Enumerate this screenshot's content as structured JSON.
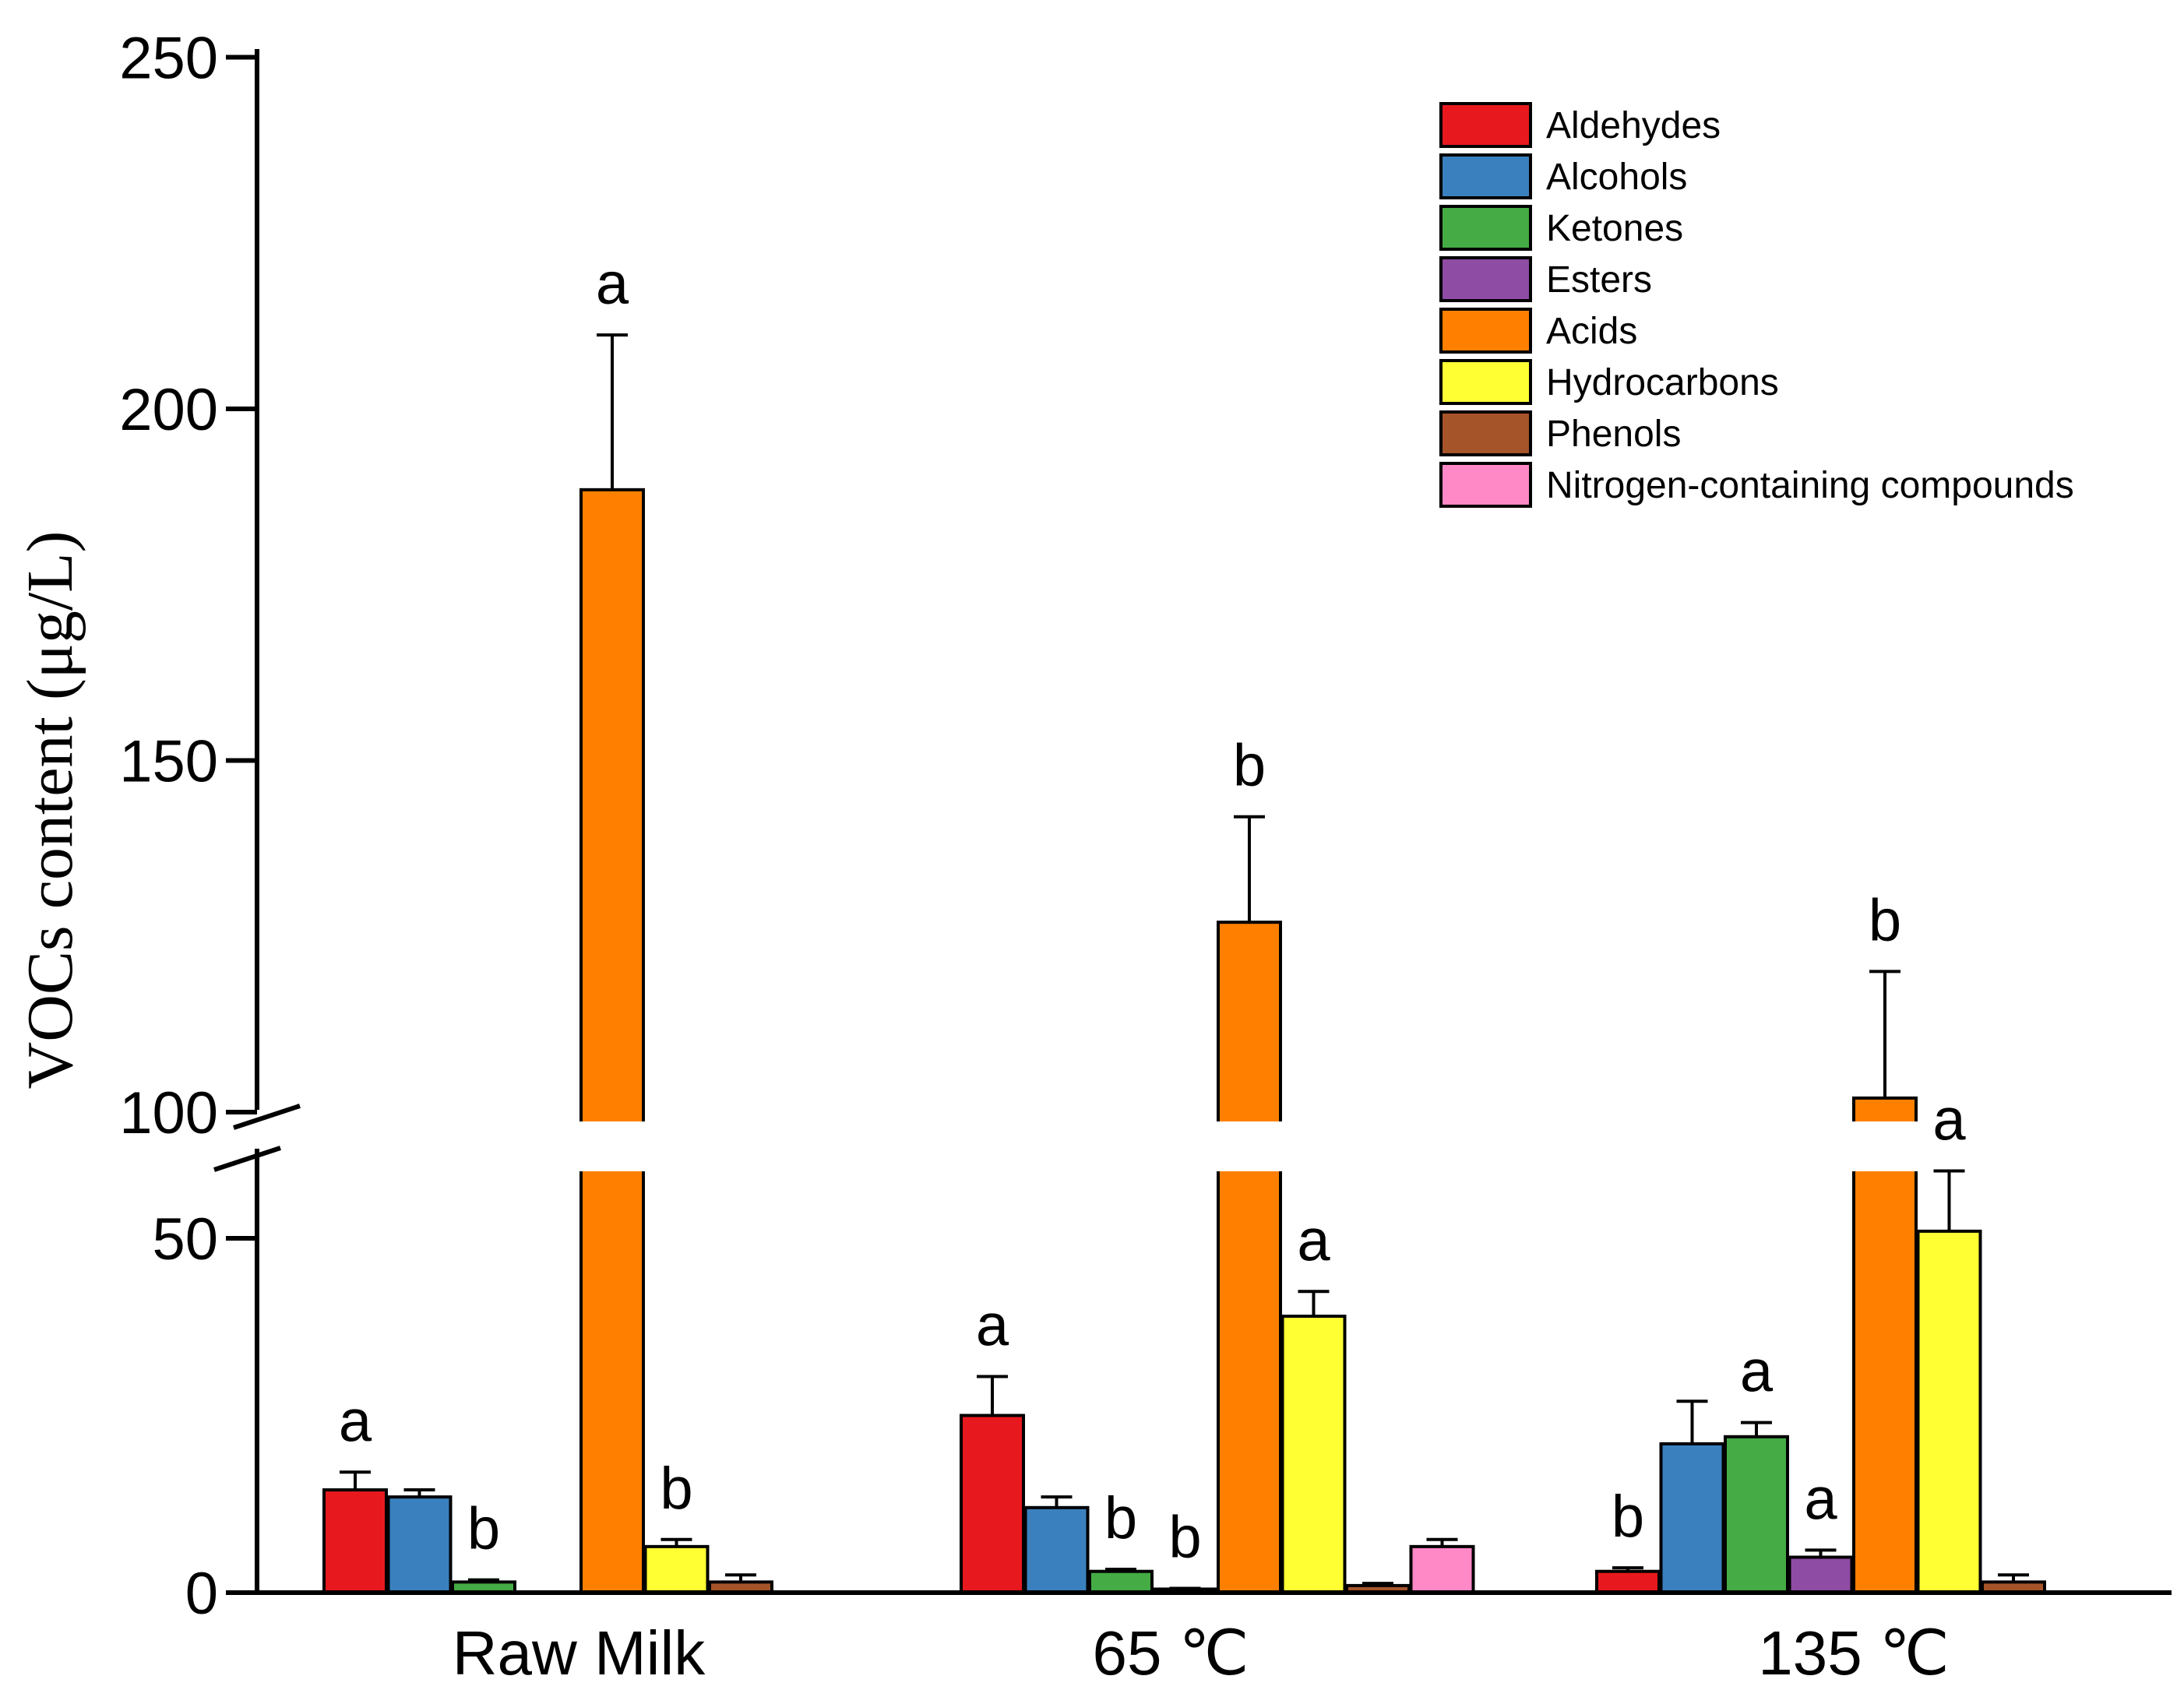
{
  "chart_data": {
    "type": "bar",
    "title": "",
    "xlabel": "",
    "ylabel": "VOCs content (μg/L)",
    "categories": [
      "Raw Milk",
      "65 ℃",
      "135 ℃"
    ],
    "y_axis": {
      "broken": true,
      "lower_segment": [
        0,
        60
      ],
      "upper_segment": [
        100,
        250
      ],
      "ticks": [
        "0",
        "50",
        "100",
        "150",
        "200",
        "250"
      ]
    },
    "grid": false,
    "legend_position": "top-right",
    "series": [
      {
        "name": "Aldehydes",
        "color": "#e8191e",
        "values": [
          14.5,
          25,
          3
        ],
        "errors": [
          2.5,
          5.5,
          0.5
        ],
        "sig": [
          "a",
          "a",
          "b"
        ]
      },
      {
        "name": "Alcohols",
        "color": "#3a80be",
        "values": [
          13.5,
          12,
          21
        ],
        "errors": [
          1,
          1.5,
          6
        ],
        "sig": [
          "",
          "",
          ""
        ]
      },
      {
        "name": "Ketones",
        "color": "#45ab45",
        "values": [
          1.5,
          3,
          22
        ],
        "errors": [
          0.3,
          0.3,
          2
        ],
        "sig": [
          "b",
          "b",
          "a"
        ]
      },
      {
        "name": "Esters",
        "color": "#8e4ca4",
        "values": [
          0,
          0.5,
          5
        ],
        "errors": [
          0,
          0.1,
          1
        ],
        "sig": [
          "",
          "b",
          "a"
        ]
      },
      {
        "name": "Acids",
        "color": "#ff8000",
        "values": [
          188.5,
          127,
          102
        ],
        "errors": [
          22,
          15,
          18
        ],
        "sig": [
          "a",
          "b",
          "b"
        ]
      },
      {
        "name": "Hydrocarbons",
        "color": "#ffff33",
        "values": [
          6.5,
          39,
          51
        ],
        "errors": [
          1,
          3.5,
          8.5
        ],
        "sig": [
          "b",
          "a",
          "a"
        ]
      },
      {
        "name": "Phenols",
        "color": "#a5542a",
        "values": [
          1.5,
          1,
          1.5
        ],
        "errors": [
          1,
          0.3,
          1
        ],
        "sig": [
          "",
          "",
          ""
        ]
      },
      {
        "name": "Nitrogen-containing compounds",
        "color": "#ff88c6",
        "values": [
          0,
          6.5,
          0
        ],
        "errors": [
          0,
          1,
          0
        ],
        "sig": [
          "",
          "",
          ""
        ]
      }
    ]
  }
}
